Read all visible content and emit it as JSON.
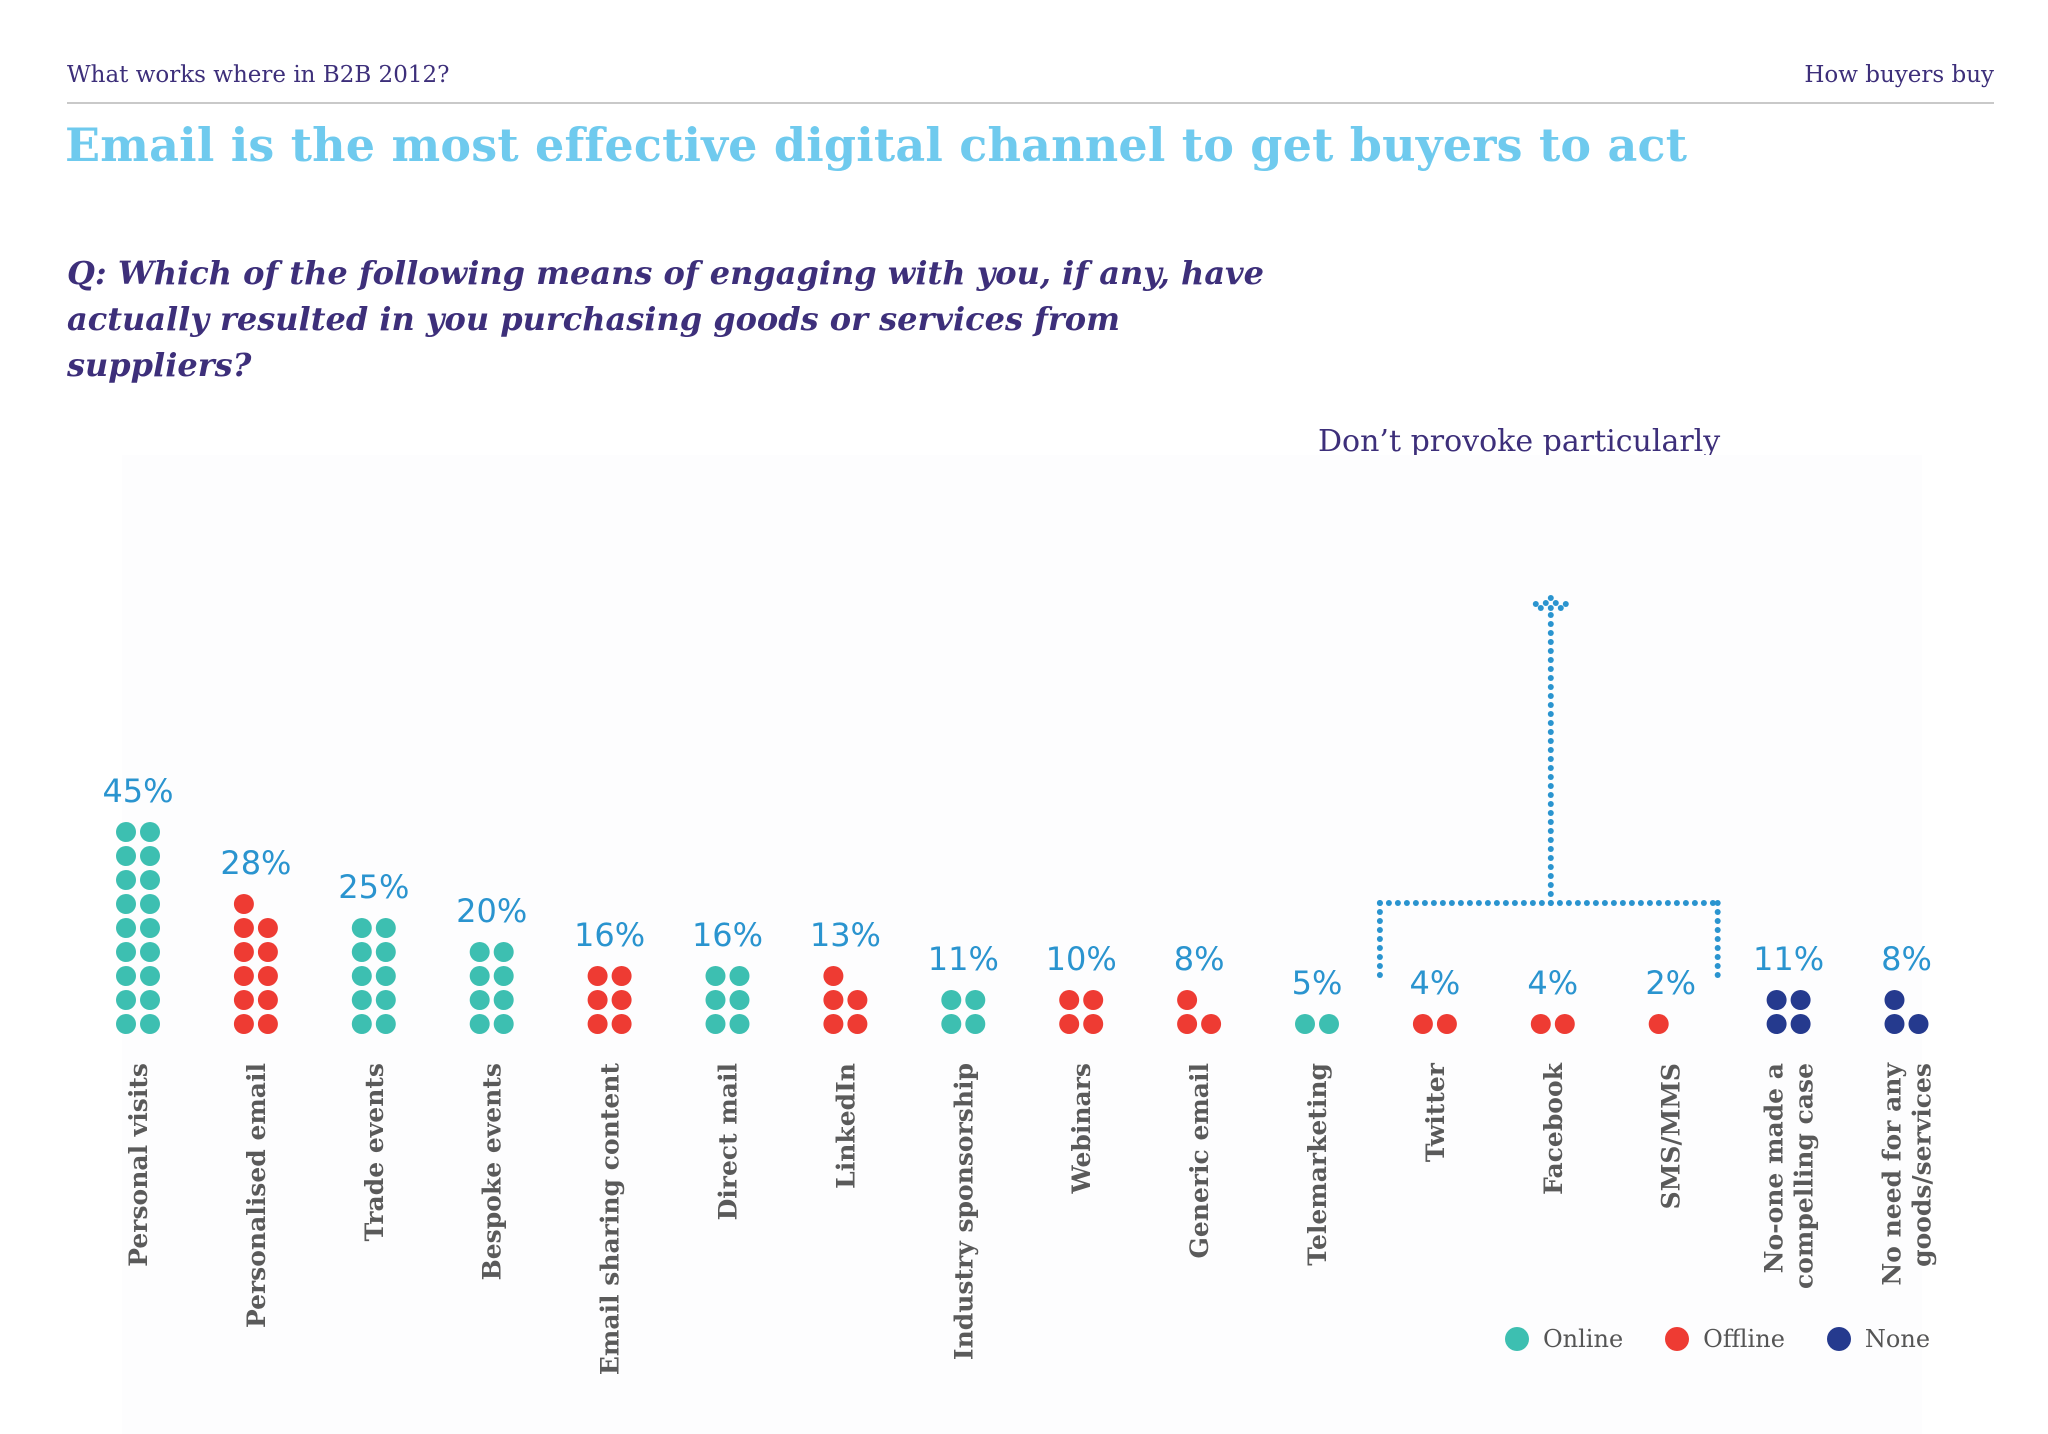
{
  "header": {
    "left": "What works where in B2B 2012?",
    "right": "How buyers buy"
  },
  "title": "Email is the most effective digital channel to get buyers to act",
  "question": "Q: Which of  the following means of  engaging with you, if  any, have actually resulted in you purchasing goods or services from suppliers?",
  "note": "Don’t provoke particularly negative reactions but don’t lead buyers to act either.",
  "colors": {
    "online": "#3dbfb1",
    "offline": "#ee3b33",
    "none": "#253a8e",
    "value_label": "#2a94cf",
    "bracket": "#2a94cf"
  },
  "legend": [
    {
      "label": "Online",
      "color_key": "online"
    },
    {
      "label": "Offline",
      "color_key": "offline"
    },
    {
      "label": "None",
      "color_key": "none"
    }
  ],
  "chart_data": {
    "type": "bar",
    "value_unit": "%",
    "categories": [
      {
        "label": "Personal visits",
        "value": 45,
        "group": "online"
      },
      {
        "label": "Personalised email",
        "value": 28,
        "group": "offline"
      },
      {
        "label": "Trade events",
        "value": 25,
        "group": "online"
      },
      {
        "label": "Bespoke events",
        "value": 20,
        "group": "online"
      },
      {
        "label": "Email sharing content",
        "value": 16,
        "group": "offline"
      },
      {
        "label": "Direct mail",
        "value": 16,
        "group": "online"
      },
      {
        "label": "LinkedIn",
        "value": 13,
        "group": "offline"
      },
      {
        "label": "Industry sponsorship",
        "value": 11,
        "group": "online"
      },
      {
        "label": "Webinars",
        "value": 10,
        "group": "offline"
      },
      {
        "label": "Generic email",
        "value": 8,
        "group": "offline"
      },
      {
        "label": "Telemarketing",
        "value": 5,
        "group": "online"
      },
      {
        "label": "Twitter",
        "value": 4,
        "group": "offline"
      },
      {
        "label": "Facebook",
        "value": 4,
        "group": "offline"
      },
      {
        "label": "SMS/MMS",
        "value": 2,
        "group": "offline"
      },
      {
        "label": "No-one made a compelling case",
        "value": 11,
        "group": "none"
      },
      {
        "label": "No need for any goods/services",
        "value": 8,
        "group": "none"
      }
    ],
    "bracket_categories": [
      "Twitter",
      "Facebook",
      "SMS/MMS"
    ]
  }
}
